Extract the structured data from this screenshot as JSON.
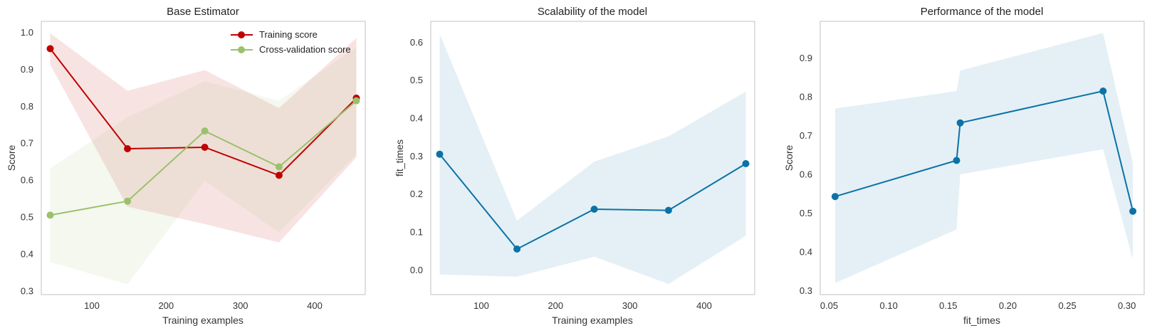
{
  "chart_data": [
    {
      "type": "line",
      "title": "Base Estimator",
      "xlabel": "Training examples",
      "ylabel": "Score",
      "xlim": [
        32,
        468
      ],
      "ylim": [
        0.29,
        1.03
      ],
      "xticks": [
        100,
        200,
        300,
        400
      ],
      "yticks": [
        0.3,
        0.4,
        0.5,
        0.6,
        0.7,
        0.8,
        0.9,
        1.0
      ],
      "ytick_labels": [
        "0.3",
        "0.4",
        "0.5",
        "0.6",
        "0.7",
        "0.8",
        "0.9",
        "1.0"
      ],
      "grid": false,
      "legend": "top-right",
      "series": [
        {
          "name": "Training score",
          "color": "#c00000",
          "x": [
            44,
            148,
            252,
            352,
            456
          ],
          "values": [
            0.956,
            0.685,
            0.689,
            0.613,
            0.822
          ],
          "band_upper": [
            0.998,
            0.842,
            0.898,
            0.795,
            0.985
          ],
          "band_lower": [
            0.913,
            0.528,
            0.481,
            0.431,
            0.662
          ]
        },
        {
          "name": "Cross-validation score",
          "color": "#9bc16c",
          "x": [
            44,
            148,
            252,
            352,
            456
          ],
          "values": [
            0.505,
            0.543,
            0.733,
            0.636,
            0.815
          ],
          "band_upper": [
            0.632,
            0.77,
            0.868,
            0.815,
            0.96
          ],
          "band_lower": [
            0.378,
            0.318,
            0.598,
            0.458,
            0.67
          ]
        }
      ]
    },
    {
      "type": "line",
      "title": "Scalability of the model",
      "xlabel": "Training examples",
      "ylabel": "fit_times",
      "xlim": [
        32,
        468
      ],
      "ylim": [
        -0.065,
        0.655
      ],
      "xticks": [
        100,
        200,
        300,
        400
      ],
      "yticks": [
        0.0,
        0.1,
        0.2,
        0.3,
        0.4,
        0.5,
        0.6
      ],
      "ytick_labels": [
        "0.0",
        "0.1",
        "0.2",
        "0.3",
        "0.4",
        "0.5",
        "0.6"
      ],
      "grid": false,
      "series": [
        {
          "color": "#0b72a6",
          "x": [
            44,
            148,
            252,
            352,
            456
          ],
          "values": [
            0.305,
            0.055,
            0.16,
            0.157,
            0.28
          ],
          "band_upper": [
            0.622,
            0.13,
            0.285,
            0.352,
            0.47
          ],
          "band_lower": [
            -0.012,
            -0.018,
            0.035,
            -0.037,
            0.09
          ]
        }
      ]
    },
    {
      "type": "line",
      "title": "Performance of the model",
      "xlabel": "fit_times",
      "ylabel": "Score",
      "xlim": [
        0.0425,
        0.3145
      ],
      "ylim": [
        0.29,
        0.995
      ],
      "xticks": [
        0.05,
        0.1,
        0.15,
        0.2,
        0.25,
        0.3
      ],
      "xtick_labels": [
        "0.05",
        "0.10",
        "0.15",
        "0.20",
        "0.25",
        "0.30"
      ],
      "yticks": [
        0.3,
        0.4,
        0.5,
        0.6,
        0.7,
        0.8,
        0.9
      ],
      "ytick_labels": [
        "0.3",
        "0.4",
        "0.5",
        "0.6",
        "0.7",
        "0.8",
        "0.9"
      ],
      "grid": false,
      "series": [
        {
          "color": "#0b72a6",
          "x": [
            0.055,
            0.157,
            0.16,
            0.28,
            0.305
          ],
          "values": [
            0.543,
            0.636,
            0.733,
            0.815,
            0.505
          ],
          "band_upper": [
            0.77,
            0.815,
            0.868,
            0.965,
            0.63
          ],
          "band_lower": [
            0.32,
            0.458,
            0.6,
            0.665,
            0.38
          ]
        }
      ]
    }
  ]
}
